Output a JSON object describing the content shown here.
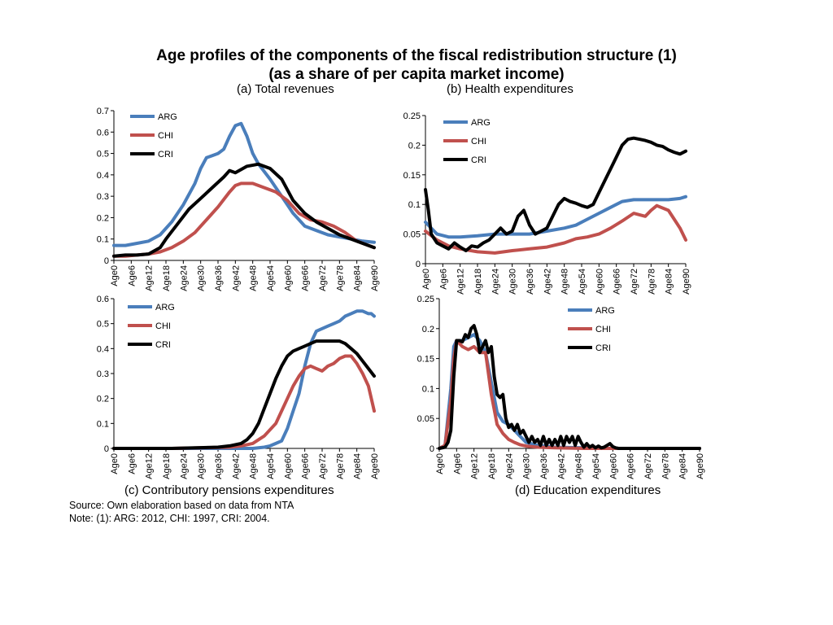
{
  "header": {
    "title": "Age profiles of the components of the fiscal redistribution structure (1)",
    "subtitle": "(as a share of per capita market income)"
  },
  "footer": {
    "source": "Source: Own elaboration based on data from NTA",
    "note": "Note: (1): ARG: 2012, CHI: 1997, CRI: 2004."
  },
  "colors": {
    "ARG": "#4a7ebb",
    "CHI": "#c0504d",
    "CRI": "#000000"
  },
  "chart_data": [
    {
      "id": "a",
      "type": "line",
      "title": "(a) Total revenues",
      "ylim": [
        0,
        0.7
      ],
      "yticks": [
        0,
        0.1,
        0.2,
        0.3,
        0.4,
        0.5,
        0.6,
        0.7
      ],
      "ytick_labels": [
        "0",
        "0.1",
        "0.2",
        "0.3",
        "0.4",
        "0.5",
        "0.6",
        "0.7"
      ],
      "xlim": [
        0,
        90
      ],
      "xticks": [
        "Age0",
        "Age6",
        "Age12",
        "Age18",
        "Age24",
        "Age30",
        "Age36",
        "Age42",
        "Age48",
        "Age54",
        "Age60",
        "Age66",
        "Age72",
        "Age78",
        "Age84",
        "Age90"
      ],
      "legend": "top-left",
      "series": [
        {
          "name": "ARG",
          "x": [
            0,
            4,
            8,
            12,
            16,
            20,
            24,
            28,
            30,
            32,
            34,
            36,
            38,
            40,
            42,
            44,
            46,
            48,
            50,
            54,
            58,
            62,
            66,
            70,
            74,
            78,
            82,
            86,
            90
          ],
          "y": [
            0.07,
            0.07,
            0.08,
            0.09,
            0.12,
            0.18,
            0.26,
            0.36,
            0.43,
            0.48,
            0.49,
            0.5,
            0.52,
            0.58,
            0.63,
            0.64,
            0.58,
            0.5,
            0.45,
            0.38,
            0.3,
            0.22,
            0.16,
            0.14,
            0.12,
            0.11,
            0.1,
            0.09,
            0.085
          ]
        },
        {
          "name": "CHI",
          "x": [
            0,
            4,
            8,
            12,
            16,
            20,
            24,
            28,
            32,
            36,
            40,
            42,
            44,
            48,
            52,
            56,
            60,
            64,
            68,
            72,
            76,
            80,
            84,
            88,
            90
          ],
          "y": [
            0.02,
            0.02,
            0.025,
            0.03,
            0.04,
            0.06,
            0.09,
            0.13,
            0.19,
            0.25,
            0.32,
            0.35,
            0.36,
            0.36,
            0.34,
            0.32,
            0.28,
            0.22,
            0.19,
            0.18,
            0.16,
            0.13,
            0.09,
            0.07,
            0.06
          ]
        },
        {
          "name": "CRI",
          "x": [
            0,
            4,
            8,
            12,
            16,
            18,
            22,
            26,
            30,
            34,
            38,
            40,
            42,
            46,
            50,
            54,
            58,
            62,
            66,
            70,
            74,
            78,
            82,
            86,
            90
          ],
          "y": [
            0.02,
            0.025,
            0.025,
            0.03,
            0.06,
            0.1,
            0.17,
            0.24,
            0.29,
            0.34,
            0.39,
            0.42,
            0.41,
            0.44,
            0.45,
            0.43,
            0.38,
            0.28,
            0.22,
            0.18,
            0.15,
            0.12,
            0.1,
            0.08,
            0.06
          ]
        }
      ]
    },
    {
      "id": "b",
      "type": "line",
      "title": "(b) Health expenditures",
      "ylim": [
        0,
        0.25
      ],
      "yticks": [
        0,
        0.05,
        0.1,
        0.15,
        0.2,
        0.25
      ],
      "ytick_labels": [
        "0",
        "0.05",
        "0.1",
        "0.15",
        "0.2",
        "0.25"
      ],
      "xlim": [
        0,
        90
      ],
      "xticks": [
        "Age0",
        "Age6",
        "Age12",
        "Age18",
        "Age24",
        "Age30",
        "Age36",
        "Age42",
        "Age48",
        "Age54",
        "Age60",
        "Age66",
        "Age72",
        "Age78",
        "Age84",
        "Age90"
      ],
      "legend": "top-left",
      "series": [
        {
          "name": "ARG",
          "x": [
            0,
            4,
            8,
            12,
            18,
            24,
            30,
            36,
            42,
            48,
            52,
            56,
            60,
            64,
            68,
            72,
            76,
            80,
            84,
            88,
            90
          ],
          "y": [
            0.07,
            0.05,
            0.045,
            0.045,
            0.047,
            0.05,
            0.05,
            0.05,
            0.055,
            0.06,
            0.065,
            0.075,
            0.085,
            0.095,
            0.105,
            0.108,
            0.108,
            0.108,
            0.108,
            0.11,
            0.113
          ]
        },
        {
          "name": "CHI",
          "x": [
            0,
            4,
            8,
            12,
            18,
            24,
            30,
            36,
            42,
            48,
            52,
            56,
            60,
            64,
            68,
            72,
            76,
            78,
            80,
            84,
            86,
            88,
            90
          ],
          "y": [
            0.055,
            0.04,
            0.03,
            0.025,
            0.02,
            0.018,
            0.022,
            0.025,
            0.028,
            0.035,
            0.042,
            0.045,
            0.05,
            0.06,
            0.072,
            0.085,
            0.08,
            0.09,
            0.098,
            0.09,
            0.075,
            0.06,
            0.04
          ]
        },
        {
          "name": "CRI",
          "x": [
            0,
            1,
            2,
            4,
            6,
            8,
            10,
            12,
            14,
            16,
            18,
            20,
            22,
            24,
            26,
            28,
            30,
            32,
            34,
            36,
            38,
            40,
            42,
            44,
            46,
            48,
            50,
            52,
            54,
            56,
            58,
            60,
            62,
            64,
            66,
            68,
            70,
            72,
            74,
            76,
            78,
            80,
            82,
            84,
            86,
            88,
            90
          ],
          "y": [
            0.125,
            0.09,
            0.05,
            0.035,
            0.03,
            0.025,
            0.035,
            0.028,
            0.022,
            0.03,
            0.028,
            0.035,
            0.04,
            0.05,
            0.06,
            0.05,
            0.055,
            0.08,
            0.09,
            0.065,
            0.05,
            0.055,
            0.06,
            0.08,
            0.1,
            0.11,
            0.105,
            0.102,
            0.098,
            0.095,
            0.1,
            0.12,
            0.14,
            0.16,
            0.18,
            0.2,
            0.21,
            0.212,
            0.21,
            0.208,
            0.205,
            0.2,
            0.198,
            0.192,
            0.188,
            0.185,
            0.19
          ]
        }
      ]
    },
    {
      "id": "c",
      "type": "line",
      "title": "(c) Contributory pensions expenditures",
      "ylim": [
        0,
        0.6
      ],
      "yticks": [
        0,
        0.1,
        0.2,
        0.3,
        0.4,
        0.5,
        0.6
      ],
      "ytick_labels": [
        "0",
        "0.1",
        "0.2",
        "0.3",
        "0.4",
        "0.5",
        "0.6"
      ],
      "xlim": [
        0,
        90
      ],
      "xticks": [
        "Age0",
        "Age6",
        "Age12",
        "Age18",
        "Age24",
        "Age30",
        "Age36",
        "Age42",
        "Age48",
        "Age54",
        "Age60",
        "Age66",
        "Age72",
        "Age78",
        "Age84",
        "Age90"
      ],
      "legend": "top-right",
      "series": [
        {
          "name": "ARG",
          "x": [
            0,
            20,
            40,
            48,
            52,
            54,
            56,
            58,
            60,
            62,
            64,
            66,
            68,
            70,
            72,
            74,
            76,
            78,
            80,
            82,
            84,
            86,
            88,
            89,
            90
          ],
          "y": [
            0,
            0,
            0,
            0,
            0.005,
            0.01,
            0.02,
            0.03,
            0.08,
            0.15,
            0.22,
            0.33,
            0.42,
            0.47,
            0.48,
            0.49,
            0.5,
            0.51,
            0.53,
            0.54,
            0.55,
            0.55,
            0.54,
            0.54,
            0.53
          ]
        },
        {
          "name": "CHI",
          "x": [
            0,
            20,
            40,
            44,
            48,
            52,
            56,
            60,
            62,
            64,
            66,
            68,
            70,
            72,
            74,
            76,
            78,
            80,
            82,
            84,
            86,
            88,
            90
          ],
          "y": [
            0,
            0,
            0.005,
            0.01,
            0.02,
            0.05,
            0.1,
            0.2,
            0.25,
            0.29,
            0.32,
            0.33,
            0.32,
            0.31,
            0.33,
            0.34,
            0.36,
            0.37,
            0.37,
            0.34,
            0.3,
            0.25,
            0.15
          ]
        },
        {
          "name": "CRI",
          "x": [
            0,
            20,
            36,
            40,
            44,
            46,
            48,
            50,
            52,
            54,
            56,
            58,
            60,
            62,
            64,
            66,
            68,
            70,
            72,
            74,
            76,
            78,
            80,
            82,
            84,
            86,
            88,
            90
          ],
          "y": [
            0,
            0,
            0.005,
            0.01,
            0.02,
            0.035,
            0.06,
            0.1,
            0.16,
            0.22,
            0.28,
            0.33,
            0.37,
            0.39,
            0.4,
            0.41,
            0.42,
            0.43,
            0.43,
            0.43,
            0.43,
            0.43,
            0.42,
            0.4,
            0.38,
            0.35,
            0.32,
            0.29
          ]
        }
      ]
    },
    {
      "id": "d",
      "type": "line",
      "title": "(d) Education expenditures",
      "ylim": [
        0,
        0.25
      ],
      "yticks": [
        0,
        0.05,
        0.1,
        0.15,
        0.2,
        0.25
      ],
      "ytick_labels": [
        "0",
        "0.05",
        "0.1",
        "0.15",
        "0.2",
        "0.25"
      ],
      "xlim": [
        0,
        90
      ],
      "xticks": [
        "Age0",
        "Age6",
        "Age12",
        "Age18",
        "Age24",
        "Age30",
        "Age36",
        "Age42",
        "Age48",
        "Age54",
        "Age60",
        "Age66",
        "Age72",
        "Age78",
        "Age84",
        "Age90"
      ],
      "legend": "top-right",
      "series": [
        {
          "name": "ARG",
          "x": [
            0,
            2,
            4,
            5,
            6,
            8,
            10,
            12,
            14,
            16,
            18,
            20,
            22,
            24,
            26,
            28,
            30,
            34,
            40,
            50,
            60,
            90
          ],
          "y": [
            0,
            0.005,
            0.1,
            0.17,
            0.18,
            0.18,
            0.185,
            0.19,
            0.18,
            0.16,
            0.11,
            0.06,
            0.045,
            0.04,
            0.03,
            0.02,
            0.01,
            0.005,
            0.002,
            0.001,
            0,
            0
          ]
        },
        {
          "name": "CHI",
          "x": [
            0,
            2,
            4,
            5,
            6,
            8,
            10,
            12,
            14,
            16,
            18,
            20,
            22,
            24,
            26,
            28,
            30,
            34,
            40,
            50,
            90
          ],
          "y": [
            0,
            0.005,
            0.08,
            0.15,
            0.18,
            0.17,
            0.165,
            0.17,
            0.16,
            0.16,
            0.09,
            0.04,
            0.025,
            0.015,
            0.01,
            0.006,
            0.004,
            0.002,
            0.001,
            0,
            0
          ]
        },
        {
          "name": "CRI",
          "x": [
            0,
            2,
            3,
            4,
            5,
            6,
            7,
            8,
            9,
            10,
            11,
            12,
            13,
            14,
            15,
            16,
            17,
            18,
            19,
            20,
            21,
            22,
            23,
            24,
            25,
            26,
            27,
            28,
            29,
            30,
            31,
            32,
            33,
            34,
            35,
            36,
            37,
            38,
            39,
            40,
            41,
            42,
            43,
            44,
            45,
            46,
            47,
            48,
            49,
            50,
            51,
            52,
            53,
            54,
            55,
            56,
            57,
            58,
            59,
            60,
            61,
            62,
            90
          ],
          "y": [
            0,
            0.002,
            0.01,
            0.03,
            0.12,
            0.18,
            0.18,
            0.178,
            0.19,
            0.185,
            0.2,
            0.205,
            0.19,
            0.16,
            0.17,
            0.18,
            0.16,
            0.17,
            0.12,
            0.09,
            0.085,
            0.09,
            0.05,
            0.035,
            0.04,
            0.03,
            0.04,
            0.025,
            0.03,
            0.02,
            0.01,
            0.02,
            0.01,
            0.015,
            0.005,
            0.02,
            0.005,
            0.015,
            0.005,
            0.015,
            0.005,
            0.02,
            0.005,
            0.02,
            0.01,
            0.02,
            0.005,
            0.02,
            0.01,
            0.002,
            0.008,
            0.002,
            0.005,
            0.001,
            0.004,
            0.001,
            0.002,
            0.005,
            0.008,
            0.003,
            0.001,
            0,
            0
          ]
        }
      ]
    }
  ]
}
